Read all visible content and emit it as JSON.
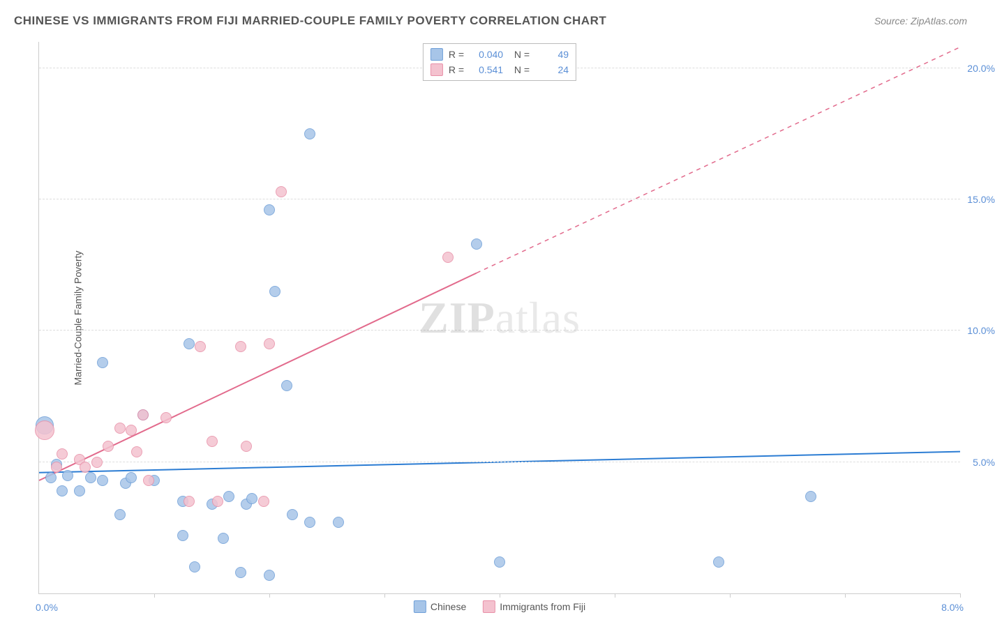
{
  "header": {
    "title": "CHINESE VS IMMIGRANTS FROM FIJI MARRIED-COUPLE FAMILY POVERTY CORRELATION CHART",
    "source": "Source: ZipAtlas.com"
  },
  "watermark": {
    "part1": "ZIP",
    "part2": "atlas"
  },
  "chart": {
    "type": "scatter",
    "background_color": "#ffffff",
    "grid_color": "#dddddd",
    "axis_color": "#cccccc",
    "y_axis_label": "Married-Couple Family Poverty",
    "y_axis_label_color": "#555555",
    "xlim": [
      0,
      8
    ],
    "ylim": [
      0,
      21
    ],
    "y_ticks": [
      {
        "value": 5.0,
        "label": "5.0%"
      },
      {
        "value": 10.0,
        "label": "10.0%"
      },
      {
        "value": 15.0,
        "label": "15.0%"
      },
      {
        "value": 20.0,
        "label": "20.0%"
      }
    ],
    "y_tick_color": "#5b8fd6",
    "x_origin_label": "0.0%",
    "x_end_label": "8.0%",
    "x_tick_positions": [
      1,
      2,
      3,
      4,
      5,
      6,
      7,
      8
    ],
    "series": [
      {
        "name": "Chinese",
        "fill_color": "#a7c5e8",
        "stroke_color": "#6f9fd8",
        "line_color": "#2b7cd3",
        "r_value": "0.040",
        "n_value": "49",
        "trend": {
          "x1": 0,
          "y1": 4.6,
          "x2": 8,
          "y2": 5.4
        },
        "points": [
          {
            "x": 0.05,
            "y": 6.4,
            "r": 13
          },
          {
            "x": 0.1,
            "y": 4.4,
            "r": 8
          },
          {
            "x": 0.15,
            "y": 4.9,
            "r": 8
          },
          {
            "x": 0.2,
            "y": 3.9,
            "r": 8
          },
          {
            "x": 0.25,
            "y": 4.5,
            "r": 8
          },
          {
            "x": 0.35,
            "y": 3.9,
            "r": 8
          },
          {
            "x": 0.45,
            "y": 4.4,
            "r": 8
          },
          {
            "x": 0.55,
            "y": 4.3,
            "r": 8
          },
          {
            "x": 0.55,
            "y": 8.8,
            "r": 8
          },
          {
            "x": 0.7,
            "y": 3.0,
            "r": 8
          },
          {
            "x": 0.75,
            "y": 4.2,
            "r": 8
          },
          {
            "x": 0.8,
            "y": 4.4,
            "r": 8
          },
          {
            "x": 0.9,
            "y": 6.8,
            "r": 8
          },
          {
            "x": 1.0,
            "y": 4.3,
            "r": 8
          },
          {
            "x": 1.25,
            "y": 3.5,
            "r": 8
          },
          {
            "x": 1.25,
            "y": 2.2,
            "r": 8
          },
          {
            "x": 1.3,
            "y": 9.5,
            "r": 8
          },
          {
            "x": 1.35,
            "y": 1.0,
            "r": 8
          },
          {
            "x": 1.5,
            "y": 3.4,
            "r": 8
          },
          {
            "x": 1.6,
            "y": 2.1,
            "r": 8
          },
          {
            "x": 1.65,
            "y": 3.7,
            "r": 8
          },
          {
            "x": 1.75,
            "y": 0.8,
            "r": 8
          },
          {
            "x": 1.8,
            "y": 3.4,
            "r": 8
          },
          {
            "x": 1.85,
            "y": 3.6,
            "r": 8
          },
          {
            "x": 2.0,
            "y": 0.7,
            "r": 8
          },
          {
            "x": 2.0,
            "y": 14.6,
            "r": 8
          },
          {
            "x": 2.05,
            "y": 11.5,
            "r": 8
          },
          {
            "x": 2.15,
            "y": 7.9,
            "r": 8
          },
          {
            "x": 2.2,
            "y": 3.0,
            "r": 8
          },
          {
            "x": 2.35,
            "y": 2.7,
            "r": 8
          },
          {
            "x": 2.35,
            "y": 17.5,
            "r": 8
          },
          {
            "x": 2.6,
            "y": 2.7,
            "r": 8
          },
          {
            "x": 3.8,
            "y": 13.3,
            "r": 8
          },
          {
            "x": 4.0,
            "y": 1.2,
            "r": 8
          },
          {
            "x": 5.9,
            "y": 1.2,
            "r": 8
          },
          {
            "x": 6.7,
            "y": 3.7,
            "r": 8
          }
        ]
      },
      {
        "name": "Immigrants from Fiji",
        "fill_color": "#f4c2cf",
        "stroke_color": "#e890a8",
        "line_color": "#e26a8c",
        "r_value": "0.541",
        "n_value": "24",
        "trend_solid": {
          "x1": 0,
          "y1": 4.3,
          "x2": 3.8,
          "y2": 12.2
        },
        "trend_dashed": {
          "x1": 3.8,
          "y1": 12.2,
          "x2": 8,
          "y2": 20.8
        },
        "points": [
          {
            "x": 0.05,
            "y": 6.2,
            "r": 14
          },
          {
            "x": 0.15,
            "y": 4.8,
            "r": 8
          },
          {
            "x": 0.2,
            "y": 5.3,
            "r": 8
          },
          {
            "x": 0.35,
            "y": 5.1,
            "r": 8
          },
          {
            "x": 0.4,
            "y": 4.8,
            "r": 8
          },
          {
            "x": 0.5,
            "y": 5.0,
            "r": 8
          },
          {
            "x": 0.6,
            "y": 5.6,
            "r": 8
          },
          {
            "x": 0.7,
            "y": 6.3,
            "r": 8
          },
          {
            "x": 0.8,
            "y": 6.2,
            "r": 8
          },
          {
            "x": 0.85,
            "y": 5.4,
            "r": 8
          },
          {
            "x": 0.9,
            "y": 6.8,
            "r": 8
          },
          {
            "x": 0.95,
            "y": 4.3,
            "r": 8
          },
          {
            "x": 1.1,
            "y": 6.7,
            "r": 8
          },
          {
            "x": 1.3,
            "y": 3.5,
            "r": 8
          },
          {
            "x": 1.4,
            "y": 9.4,
            "r": 8
          },
          {
            "x": 1.5,
            "y": 5.8,
            "r": 8
          },
          {
            "x": 1.55,
            "y": 3.5,
            "r": 8
          },
          {
            "x": 1.75,
            "y": 9.4,
            "r": 8
          },
          {
            "x": 1.8,
            "y": 5.6,
            "r": 8
          },
          {
            "x": 1.95,
            "y": 3.5,
            "r": 8
          },
          {
            "x": 2.0,
            "y": 9.5,
            "r": 8
          },
          {
            "x": 2.1,
            "y": 15.3,
            "r": 8
          },
          {
            "x": 3.55,
            "y": 12.8,
            "r": 8
          }
        ]
      }
    ]
  },
  "legend_bottom": {
    "items": [
      {
        "label": "Chinese",
        "fill": "#a7c5e8",
        "border": "#6f9fd8"
      },
      {
        "label": "Immigrants from Fiji",
        "fill": "#f4c2cf",
        "border": "#e890a8"
      }
    ]
  }
}
